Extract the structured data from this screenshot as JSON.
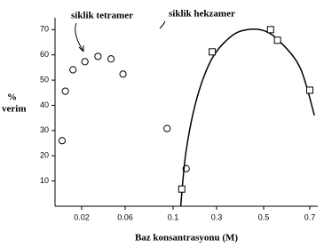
{
  "chart_data": {
    "type": "scatter",
    "xlabel": "Baz konsantrasyonu (M)",
    "ylabel": [
      "%",
      "verim"
    ],
    "xticks": [
      0.02,
      0.06,
      0.1,
      0.3,
      0.5,
      0.7
    ],
    "ylim": [
      0,
      74
    ],
    "yticks": [
      10,
      20,
      30,
      40,
      50,
      60,
      70
    ],
    "series": [
      {
        "name": "siklik tetramer",
        "marker": "circle",
        "color": "#000000",
        "x": [
          0.002,
          0.005,
          0.012,
          0.023,
          0.035,
          0.047,
          0.058,
          0.095,
          0.16
        ],
        "values": [
          26,
          45.6,
          54.1,
          57.3,
          59.4,
          58.4,
          52.4,
          30.8,
          14.9
        ]
      },
      {
        "name": "siklik hekzamer",
        "marker": "square",
        "color": "#000000",
        "x": [
          0.14,
          0.28,
          0.53,
          0.56,
          0.7
        ],
        "values": [
          6.8,
          61.2,
          70,
          65.8,
          46
        ],
        "fit": {
          "x": [
            0.135,
            0.16,
            0.21,
            0.28,
            0.36,
            0.43,
            0.51,
            0.58,
            0.66,
            0.72
          ],
          "values": [
            0,
            22,
            43,
            58.7,
            67.2,
            70,
            69.3,
            64.4,
            54.5,
            36
          ]
        }
      }
    ]
  }
}
